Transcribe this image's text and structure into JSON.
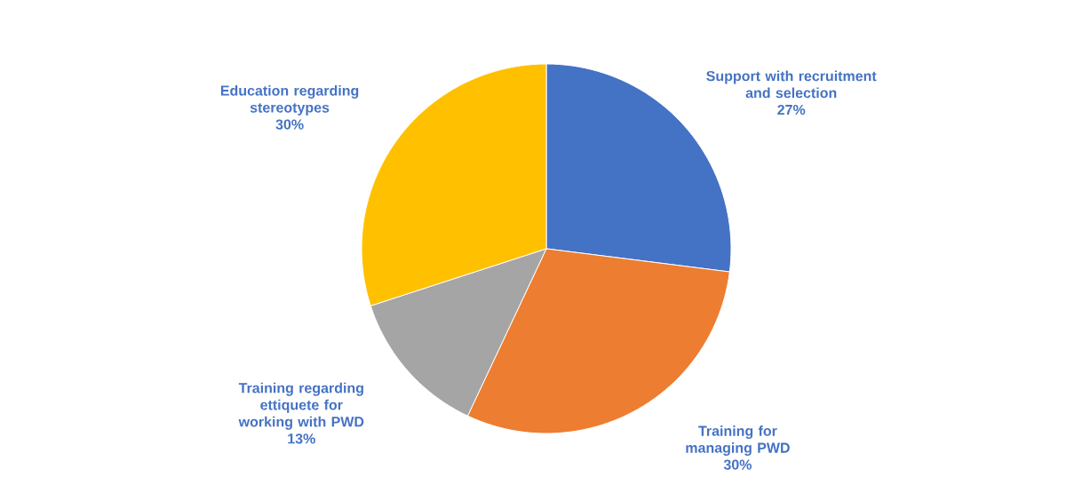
{
  "chart_data": {
    "type": "pie",
    "categories": [
      "Support with recruitment and selection",
      "Training for managing PWD",
      "Training regarding ettiquete for working with PWD",
      "Education regarding stereotypes"
    ],
    "values": [
      27,
      30,
      13,
      30
    ],
    "value_labels": [
      "27%",
      "30%",
      "13%",
      "30%"
    ],
    "colors": [
      "#4472c4",
      "#ed7d31",
      "#a5a5a5",
      "#ffc000"
    ]
  }
}
